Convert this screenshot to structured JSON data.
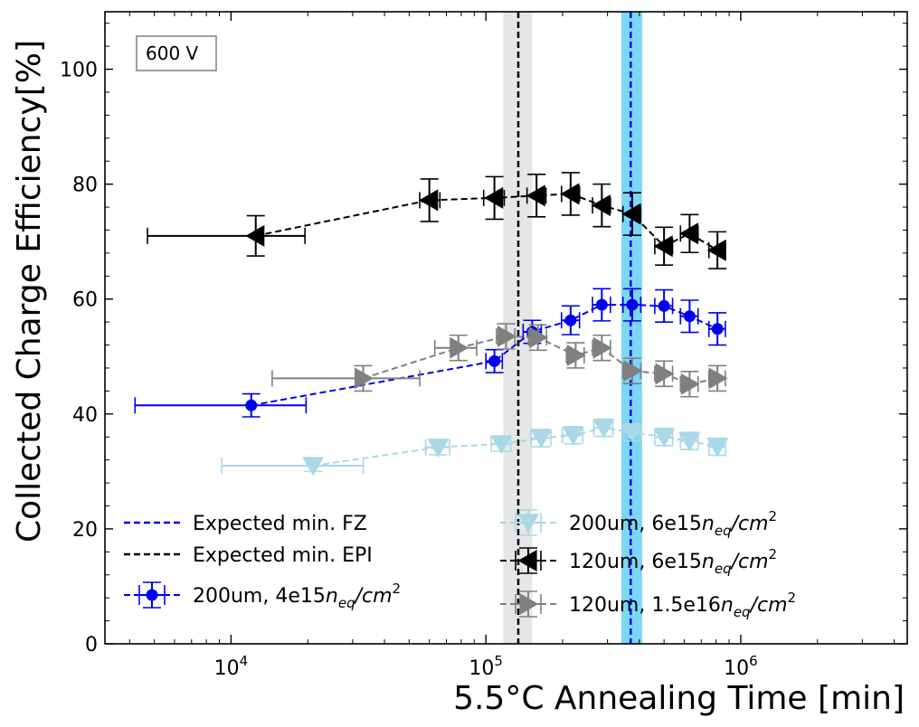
{
  "chart_data": {
    "type": "scatter",
    "xscale": "log",
    "xlim": [
      3200,
      4500000
    ],
    "ylim": [
      0,
      110
    ],
    "xlabel": "5.5°C Annealing Time [min]",
    "ylabel": "Collected Charge  Efficiency[%]",
    "annotation": "600 V",
    "x_ticks": [
      {
        "value": 10000,
        "base": "10",
        "exp": "4"
      },
      {
        "value": 100000,
        "base": "10",
        "exp": "5"
      },
      {
        "value": 1000000,
        "base": "10",
        "exp": "6"
      }
    ],
    "y_ticks": [
      "0",
      "20",
      "40",
      "60",
      "80",
      "100"
    ],
    "y_tick_values": [
      0,
      20,
      40,
      60,
      80,
      100
    ],
    "reference_lines": [
      {
        "name": "Expected min. FZ",
        "x": 370000,
        "band": [
          340000,
          410000
        ],
        "color": "#0000ee",
        "band_color": "#7ad7f5"
      },
      {
        "name": "Expected min. EPI",
        "x": 134000,
        "band": [
          117000,
          152000
        ],
        "color": "#000000",
        "band_color": "#e6e6e6"
      }
    ],
    "series": [
      {
        "name": "200um, 4e15",
        "unit": "n_eq/cm^2",
        "marker": "circle",
        "color": "#0000ee",
        "points": [
          {
            "x": 12000,
            "y": 41.5,
            "xerr": [
              4200,
              19700
            ],
            "yerr": 2.0
          },
          {
            "x": 108000,
            "y": 49.2,
            "xerr": [
              100000,
              116000
            ],
            "yerr": 2.0
          },
          {
            "x": 152000,
            "y": 54.3,
            "xerr": [
              140000,
              165000
            ],
            "yerr": 2.0
          },
          {
            "x": 215000,
            "y": 56.3,
            "xerr": [
              198000,
              233000
            ],
            "yerr": 2.5
          },
          {
            "x": 285000,
            "y": 59.0,
            "xerr": [
              262000,
              308000
            ],
            "yerr": 2.8
          },
          {
            "x": 375000,
            "y": 59.0,
            "xerr": [
              345000,
              405000
            ],
            "yerr": 2.8
          },
          {
            "x": 500000,
            "y": 58.8,
            "xerr": [
              460000,
              540000
            ],
            "yerr": 2.8
          },
          {
            "x": 630000,
            "y": 57.0,
            "xerr": [
              580000,
              680000
            ],
            "yerr": 2.8
          },
          {
            "x": 810000,
            "y": 54.8,
            "xerr": [
              750000,
              870000
            ],
            "yerr": 2.8
          }
        ]
      },
      {
        "name": "200um, 6e15",
        "unit": "n_eq/cm^2",
        "marker": "triangle-down",
        "color": "#a9d8e6",
        "points": [
          {
            "x": 21000,
            "y": 31.0,
            "xerr": [
              9200,
              33000
            ],
            "yerr": 1.0
          },
          {
            "x": 65000,
            "y": 34.2,
            "xerr": [
              58000,
              72000
            ],
            "yerr": 1.3
          },
          {
            "x": 115000,
            "y": 34.8,
            "xerr": [
              105000,
              125000
            ],
            "yerr": 1.3
          },
          {
            "x": 165000,
            "y": 35.8,
            "xerr": [
              150000,
              180000
            ],
            "yerr": 1.5
          },
          {
            "x": 220000,
            "y": 36.3,
            "xerr": [
              200000,
              240000
            ],
            "yerr": 1.5
          },
          {
            "x": 290000,
            "y": 37.6,
            "xerr": [
              265000,
              315000
            ],
            "yerr": 1.5
          },
          {
            "x": 375000,
            "y": 36.8,
            "xerr": [
              345000,
              405000
            ],
            "yerr": 1.5
          },
          {
            "x": 500000,
            "y": 36.0,
            "xerr": [
              460000,
              540000
            ],
            "yerr": 1.5
          },
          {
            "x": 630000,
            "y": 35.3,
            "xerr": [
              580000,
              680000
            ],
            "yerr": 1.5
          },
          {
            "x": 810000,
            "y": 34.3,
            "xerr": [
              750000,
              870000
            ],
            "yerr": 1.5
          }
        ]
      },
      {
        "name": "120um, 6e15",
        "unit": "n_eq/cm^2",
        "marker": "triangle-left",
        "color": "#000000",
        "points": [
          {
            "x": 12500,
            "y": 71.0,
            "xerr": [
              4700,
              19500
            ],
            "yerr": 3.5
          },
          {
            "x": 60000,
            "y": 77.2,
            "xerr": [
              55000,
              66000
            ],
            "yerr": 3.7
          },
          {
            "x": 108000,
            "y": 77.6,
            "xerr": [
              98000,
              118000
            ],
            "yerr": 3.7
          },
          {
            "x": 158000,
            "y": 78.0,
            "xerr": [
              145000,
              172000
            ],
            "yerr": 3.7
          },
          {
            "x": 215000,
            "y": 78.3,
            "xerr": [
              198000,
              233000
            ],
            "yerr": 3.7
          },
          {
            "x": 285000,
            "y": 76.3,
            "xerr": [
              262000,
              308000
            ],
            "yerr": 3.7
          },
          {
            "x": 375000,
            "y": 74.8,
            "xerr": [
              345000,
              405000
            ],
            "yerr": 3.7
          },
          {
            "x": 500000,
            "y": 69.2,
            "xerr": [
              460000,
              540000
            ],
            "yerr": 3.3
          },
          {
            "x": 630000,
            "y": 71.4,
            "xerr": [
              580000,
              680000
            ],
            "yerr": 3.3
          },
          {
            "x": 810000,
            "y": 68.5,
            "xerr": [
              750000,
              870000
            ],
            "yerr": 3.2
          }
        ]
      },
      {
        "name": "120um, 1.5e16",
        "unit": "n_eq/cm^2",
        "marker": "triangle-right",
        "color": "#808080",
        "points": [
          {
            "x": 33000,
            "y": 46.2,
            "xerr": [
              14500,
              55000
            ],
            "yerr": 2.2
          },
          {
            "x": 78000,
            "y": 51.5,
            "xerr": [
              63000,
              92000
            ],
            "yerr": 2.2
          },
          {
            "x": 120000,
            "y": 53.5,
            "xerr": [
              110000,
              130000
            ],
            "yerr": 2.2
          },
          {
            "x": 160000,
            "y": 53.3,
            "xerr": [
              147000,
              173000
            ],
            "yerr": 2.2
          },
          {
            "x": 225000,
            "y": 50.2,
            "xerr": [
              207000,
              243000
            ],
            "yerr": 2.2
          },
          {
            "x": 285000,
            "y": 51.5,
            "xerr": [
              262000,
              308000
            ],
            "yerr": 2.2
          },
          {
            "x": 375000,
            "y": 47.5,
            "xerr": [
              345000,
              405000
            ],
            "yerr": 2.2
          },
          {
            "x": 500000,
            "y": 47.0,
            "xerr": [
              460000,
              540000
            ],
            "yerr": 2.2
          },
          {
            "x": 630000,
            "y": 45.2,
            "xerr": [
              580000,
              680000
            ],
            "yerr": 2.2
          },
          {
            "x": 810000,
            "y": 46.2,
            "xerr": [
              750000,
              870000
            ],
            "yerr": 2.2
          }
        ]
      }
    ],
    "legend": {
      "placement": "lower-center",
      "entries": [
        {
          "label": "Expected min. FZ",
          "kind": "line",
          "ref": 0
        },
        {
          "label": "Expected min. EPI",
          "kind": "line",
          "ref": 1
        },
        {
          "label": "200um, 4e15",
          "kind": "series",
          "ref": 0
        },
        {
          "label": "200um, 6e15",
          "kind": "series",
          "ref": 1
        },
        {
          "label": "120um, 6e15",
          "kind": "series",
          "ref": 2
        },
        {
          "label": "120um, 1.5e16",
          "kind": "series",
          "ref": 3
        }
      ]
    }
  }
}
